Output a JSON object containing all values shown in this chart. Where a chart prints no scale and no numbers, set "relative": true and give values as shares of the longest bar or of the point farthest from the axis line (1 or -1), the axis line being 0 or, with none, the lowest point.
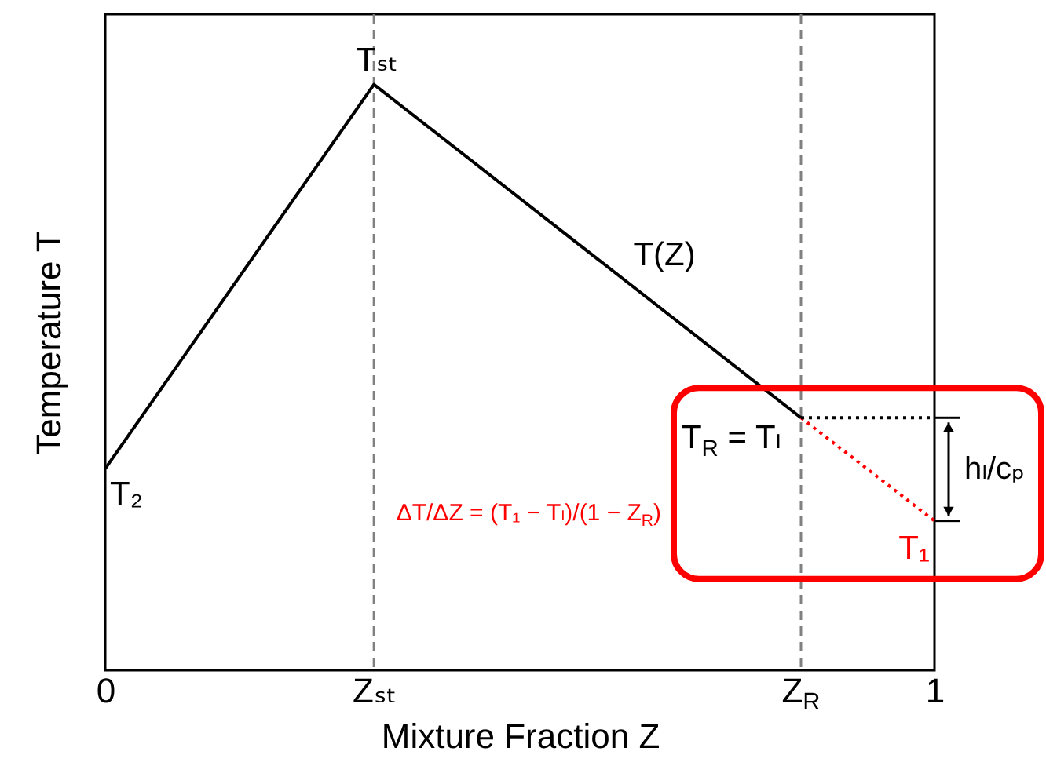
{
  "chart_data": {
    "type": "line",
    "relative": true,
    "xlabel": "Mixture Fraction Z",
    "ylabel": "Temperature T",
    "xlim": [
      0,
      1
    ],
    "xticks": [
      0,
      {
        "value": 0.324,
        "label": "Zₛₜ"
      },
      {
        "value": 0.839,
        "label": "Z$_{R}$"
      },
      1
    ],
    "series": [
      {
        "name": "T(Z)",
        "color": "#000000",
        "x": [
          0,
          0.324,
          0.839
        ],
        "values": [
          0.344,
          1,
          0.431
        ],
        "line_style": "solid"
      },
      {
        "color": "#ff0000",
        "x": [
          0.839,
          1
        ],
        "values": [
          0.431,
          0.255
        ],
        "line_style": "dotted"
      },
      {
        "color": "#000000",
        "x": [
          0.839,
          1
        ],
        "values": [
          0.431,
          0.431
        ],
        "line_style": "dotted"
      }
    ],
    "ref_lines": [
      {
        "axis": "x",
        "value": 0.324,
        "color": "#808080",
        "line_style": "dashed"
      },
      {
        "axis": "x",
        "value": 0.839,
        "color": "#808080",
        "line_style": "dashed"
      }
    ],
    "annotations": [
      {
        "text": "Tₛₜ",
        "x": 0.324,
        "y": 1
      },
      {
        "text": "T₂",
        "x": 0,
        "y": 0.344
      },
      {
        "text": "T$_{R}$ = Tₗ",
        "x": 0.839,
        "y": 0.431
      },
      {
        "text": "T₁",
        "x": 1,
        "y": 0.255
      },
      "ΔT/ΔZ = (T₁ − Tₗ)/(1 − Z$_{R}$)",
      "hₗ/cₚ"
    ]
  }
}
